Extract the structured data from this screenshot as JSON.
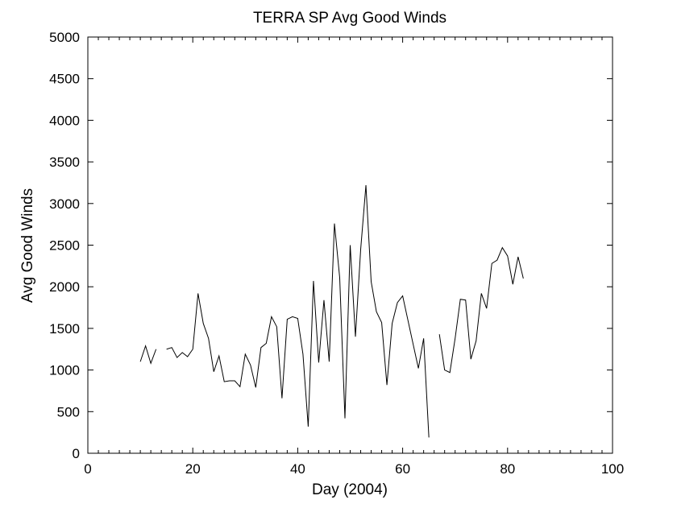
{
  "chart_data": {
    "type": "line",
    "title": "TERRA SP Avg Good Winds",
    "xlabel": "Day (2004)",
    "ylabel": "Avg Good Winds",
    "xlim": [
      0,
      100
    ],
    "ylim": [
      0,
      5000
    ],
    "xticks": [
      0,
      20,
      40,
      60,
      80,
      100
    ],
    "yticks": [
      0,
      500,
      1000,
      1500,
      2000,
      2500,
      3000,
      3500,
      4000,
      4500,
      5000
    ],
    "grid": false,
    "line_color": "#000000",
    "segments": [
      [
        [
          10,
          1100
        ],
        [
          11,
          1290
        ],
        [
          12,
          1080
        ],
        [
          13,
          1250
        ]
      ],
      [
        [
          15,
          1250
        ],
        [
          16,
          1270
        ],
        [
          17,
          1150
        ],
        [
          18,
          1210
        ],
        [
          19,
          1160
        ],
        [
          20,
          1250
        ],
        [
          21,
          1920
        ],
        [
          22,
          1560
        ],
        [
          23,
          1380
        ],
        [
          24,
          980
        ],
        [
          25,
          1170
        ],
        [
          26,
          860
        ],
        [
          27,
          870
        ],
        [
          28,
          870
        ],
        [
          29,
          800
        ],
        [
          30,
          1190
        ],
        [
          31,
          1060
        ],
        [
          32,
          790
        ],
        [
          33,
          1270
        ],
        [
          34,
          1320
        ],
        [
          35,
          1640
        ],
        [
          36,
          1520
        ],
        [
          37,
          660
        ],
        [
          38,
          1610
        ],
        [
          39,
          1640
        ],
        [
          40,
          1620
        ],
        [
          41,
          1190
        ],
        [
          42,
          320
        ],
        [
          43,
          2070
        ],
        [
          44,
          1090
        ],
        [
          45,
          1840
        ],
        [
          46,
          1100
        ],
        [
          47,
          2760
        ],
        [
          48,
          2110
        ],
        [
          49,
          420
        ],
        [
          50,
          2500
        ],
        [
          51,
          1400
        ],
        [
          52,
          2450
        ],
        [
          53,
          3220
        ],
        [
          54,
          2060
        ],
        [
          55,
          1700
        ],
        [
          56,
          1570
        ],
        [
          57,
          820
        ],
        [
          58,
          1560
        ],
        [
          59,
          1810
        ],
        [
          60,
          1890
        ],
        [
          61,
          1600
        ],
        [
          62,
          1310
        ],
        [
          63,
          1020
        ],
        [
          64,
          1380
        ],
        [
          65,
          190
        ]
      ],
      [
        [
          67,
          1430
        ],
        [
          68,
          1000
        ],
        [
          69,
          970
        ],
        [
          70,
          1380
        ],
        [
          71,
          1850
        ],
        [
          72,
          1840
        ],
        [
          73,
          1130
        ],
        [
          74,
          1350
        ],
        [
          75,
          1920
        ],
        [
          76,
          1740
        ],
        [
          77,
          2280
        ],
        [
          78,
          2320
        ],
        [
          79,
          2470
        ],
        [
          80,
          2370
        ],
        [
          81,
          2030
        ],
        [
          82,
          2360
        ],
        [
          83,
          2100
        ]
      ]
    ]
  }
}
